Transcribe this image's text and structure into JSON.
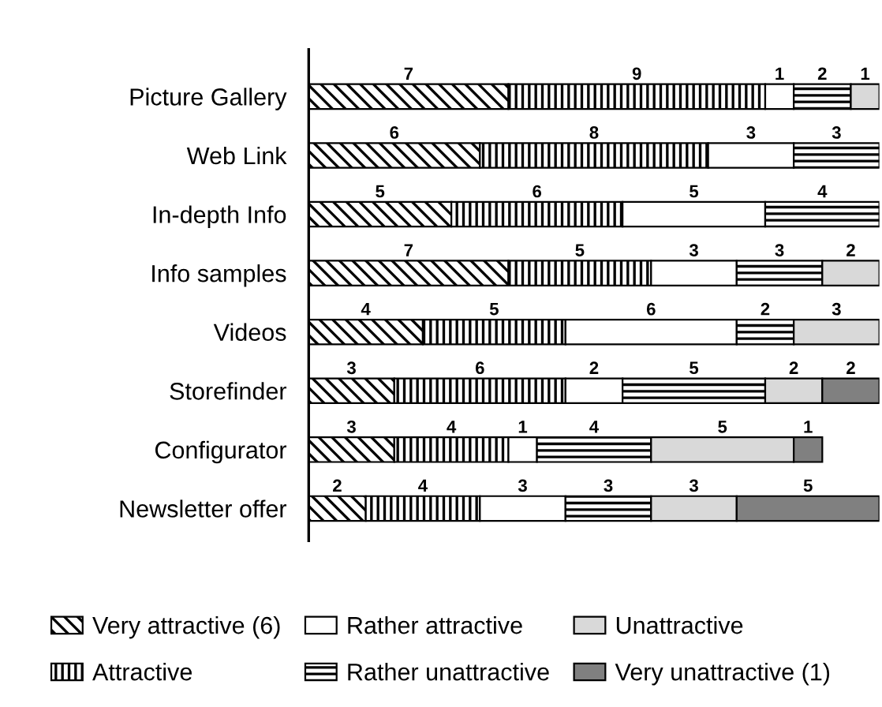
{
  "chart_data": {
    "type": "bar",
    "orientation": "horizontal",
    "stacked": true,
    "data_labels": true,
    "legend": "bottom",
    "categories": [
      "Picture Gallery",
      "Web Link",
      "In-depth Info",
      "Info samples",
      "Videos",
      "Storefinder",
      "Configurator",
      "Newsletter offer"
    ],
    "series": [
      {
        "name": "Very attractive (6)",
        "color": "#000000",
        "values": [
          7,
          6,
          5,
          7,
          4,
          3,
          3,
          2
        ]
      },
      {
        "name": "Attractive",
        "color": "#000000",
        "values": [
          9,
          8,
          6,
          5,
          5,
          6,
          4,
          4
        ]
      },
      {
        "name": "Rather attractive",
        "color": "#ffffff",
        "values": [
          1,
          3,
          5,
          3,
          6,
          2,
          1,
          3
        ]
      },
      {
        "name": "Rather unattractive",
        "color": "#000000",
        "values": [
          2,
          3,
          4,
          3,
          2,
          5,
          4,
          3
        ]
      },
      {
        "name": "Unattractive",
        "color": "#d9d9d9",
        "values": [
          1,
          null,
          null,
          2,
          3,
          2,
          5,
          3
        ]
      },
      {
        "name": "Very unattractive (1)",
        "color": "#808080",
        "values": [
          null,
          null,
          null,
          null,
          null,
          2,
          1,
          5
        ]
      }
    ]
  }
}
